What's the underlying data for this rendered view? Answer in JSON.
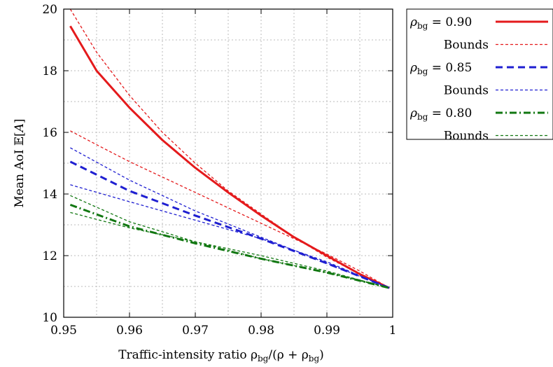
{
  "chart_data": {
    "type": "line",
    "title": "",
    "xlabel": "Traffic-intensity ratio ρbg/(ρ + ρbg)",
    "ylabel": "Mean AoI 𝔼[A]",
    "xlim": [
      0.95,
      1.0
    ],
    "ylim": [
      10,
      20
    ],
    "xticks": [
      0.95,
      0.96,
      0.97,
      0.98,
      0.99,
      1.0
    ],
    "xtick_labels": [
      "0.95",
      "0.96",
      "0.97",
      "0.98",
      "0.99",
      "1"
    ],
    "yticks": [
      10,
      12,
      14,
      16,
      18,
      20
    ],
    "ytick_labels": [
      "10",
      "12",
      "14",
      "16",
      "18",
      "20"
    ],
    "grid": true,
    "legend_position": "outside-top-right",
    "series": [
      {
        "name": "ρbg = 0.90",
        "color": "#e41a1c",
        "style": "solid",
        "x": [
          0.951,
          0.955,
          0.96,
          0.965,
          0.97,
          0.975,
          0.98,
          0.985,
          0.99,
          0.995,
          0.9995
        ],
        "y": [
          19.45,
          18.0,
          16.8,
          15.75,
          14.85,
          14.05,
          13.3,
          12.6,
          12.0,
          11.4,
          10.95
        ]
      },
      {
        "name": "Bounds",
        "color": "#e41a1c",
        "style": "thin-dashed",
        "x": [
          0.951,
          0.955,
          0.96,
          0.965,
          0.97,
          0.975,
          0.98,
          0.985,
          0.99,
          0.995,
          0.9995
        ],
        "y": [
          20.0,
          18.6,
          17.2,
          16.0,
          15.0,
          14.1,
          13.35,
          12.6,
          11.95,
          11.4,
          10.95
        ]
      },
      {
        "name": "",
        "color": "#e41a1c",
        "style": "thin-dashed",
        "x": [
          0.951,
          0.955,
          0.96,
          0.965,
          0.97,
          0.975,
          0.98,
          0.985,
          0.99,
          0.995,
          0.9995
        ],
        "y": [
          16.05,
          15.6,
          15.05,
          14.55,
          14.05,
          13.55,
          13.05,
          12.55,
          12.05,
          11.5,
          10.95
        ]
      },
      {
        "name": "ρbg = 0.85",
        "color": "#1f1fd1",
        "style": "dashed",
        "x": [
          0.951,
          0.96,
          0.97,
          0.98,
          0.99,
          0.9995
        ],
        "y": [
          15.05,
          14.1,
          13.3,
          12.55,
          11.75,
          10.95
        ]
      },
      {
        "name": "Bounds",
        "color": "#1f1fd1",
        "style": "thin-dashed",
        "x": [
          0.951,
          0.96,
          0.97,
          0.98,
          0.99,
          0.9995
        ],
        "y": [
          15.5,
          14.45,
          13.45,
          12.6,
          11.75,
          10.95
        ]
      },
      {
        "name": "",
        "color": "#1f1fd1",
        "style": "thin-dashed",
        "x": [
          0.951,
          0.96,
          0.97,
          0.98,
          0.99,
          0.9995
        ],
        "y": [
          14.3,
          13.75,
          13.15,
          12.55,
          11.8,
          10.95
        ]
      },
      {
        "name": "ρbg = 0.80",
        "color": "#117711",
        "style": "dash-dot",
        "x": [
          0.951,
          0.96,
          0.97,
          0.98,
          0.99,
          0.9995
        ],
        "y": [
          13.65,
          12.95,
          12.4,
          11.9,
          11.45,
          10.95
        ]
      },
      {
        "name": "Bounds",
        "color": "#117711",
        "style": "thin-dashed",
        "x": [
          0.951,
          0.96,
          0.97,
          0.98,
          0.99,
          0.9995
        ],
        "y": [
          13.95,
          13.1,
          12.45,
          11.9,
          11.45,
          10.95
        ]
      },
      {
        "name": "",
        "color": "#117711",
        "style": "thin-dashed",
        "x": [
          0.951,
          0.96,
          0.97,
          0.98,
          0.99,
          0.9995
        ],
        "y": [
          13.4,
          12.9,
          12.45,
          12.0,
          11.5,
          10.95
        ]
      }
    ],
    "legend": [
      {
        "rho": "ρ",
        "sub": "bg",
        "eq": " = 0.90",
        "label": "",
        "color": "#e41a1c",
        "style": "solid"
      },
      {
        "label": "Bounds",
        "color": "#e41a1c",
        "style": "thin-dashed"
      },
      {
        "rho": "ρ",
        "sub": "bg",
        "eq": " = 0.85",
        "label": "",
        "color": "#1f1fd1",
        "style": "dashed"
      },
      {
        "label": "Bounds",
        "color": "#1f1fd1",
        "style": "thin-dashed"
      },
      {
        "rho": "ρ",
        "sub": "bg",
        "eq": " = 0.80",
        "label": "",
        "color": "#117711",
        "style": "dash-dot"
      },
      {
        "label": "Bounds",
        "color": "#117711",
        "style": "thin-dashed"
      }
    ]
  }
}
